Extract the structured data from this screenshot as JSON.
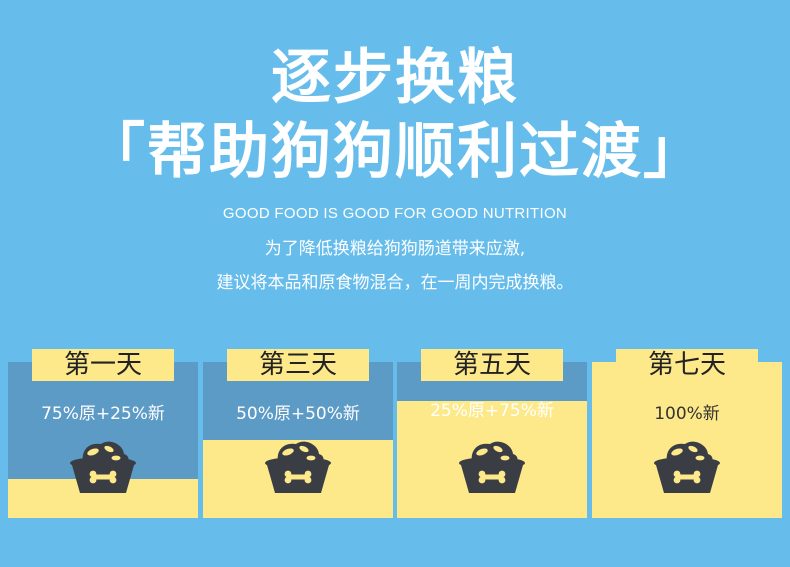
{
  "header": {
    "title_line1": "逐步换粮",
    "title_line2": "「帮助狗狗顺利过渡」",
    "tagline": "GOOD FOOD IS GOOD FOR GOOD NUTRITION",
    "description_line1": "为了降低换粮给狗狗肠道带来应激,",
    "description_line2": "建议将本品和原食物混合，在一周内完成换粮。"
  },
  "schedule": [
    {
      "day": "第一天",
      "ratio": "75%原+25%新",
      "old_food_fraction": 0.75
    },
    {
      "day": "第三天",
      "ratio": "50%原+50%新",
      "old_food_fraction": 0.5
    },
    {
      "day": "第五天",
      "ratio": "25%原+75%新",
      "old_food_fraction": 0.25
    },
    {
      "day": "第七天",
      "ratio": "100%新",
      "old_food_fraction": 0.0
    }
  ],
  "icons": {
    "bowl": "dog-food-bowl-icon"
  },
  "colors": {
    "background": "#66bdec",
    "old_food": "#5d9bc7",
    "new_food": "#fde98a",
    "bowl": "#3b3d45"
  }
}
